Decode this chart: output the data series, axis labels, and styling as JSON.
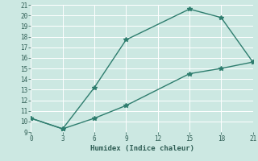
{
  "line1_x": [
    0,
    3,
    6,
    9,
    15,
    18,
    21
  ],
  "line1_y": [
    10.3,
    9.3,
    13.2,
    17.7,
    20.6,
    19.8,
    15.6
  ],
  "line2_x": [
    0,
    3,
    6,
    9,
    15,
    18,
    21
  ],
  "line2_y": [
    10.3,
    9.3,
    10.3,
    11.5,
    14.5,
    15.0,
    15.6
  ],
  "color": "#2e7d6e",
  "xlabel": "Humidex (Indice chaleur)",
  "xlim": [
    0,
    21
  ],
  "ylim": [
    9,
    21
  ],
  "xticks": [
    0,
    3,
    6,
    9,
    12,
    15,
    18,
    21
  ],
  "yticks": [
    9,
    10,
    11,
    12,
    13,
    14,
    15,
    16,
    17,
    18,
    19,
    20,
    21
  ],
  "bg_color": "#cce8e2",
  "grid_color": "#ffffff",
  "marker": "*",
  "linewidth": 1.0,
  "markersize": 4,
  "font_color": "#2e5d54",
  "tick_fontsize": 5.5,
  "xlabel_fontsize": 6.5
}
